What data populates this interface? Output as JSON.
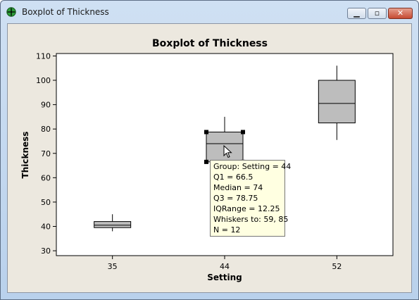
{
  "window": {
    "title": "Boxplot of Thickness",
    "app_icon": "minitab-crosshair-icon",
    "controls": {
      "minimize": "minimize-icon",
      "maximize": "maximize-icon",
      "close": "close-icon"
    }
  },
  "chart_data": {
    "type": "boxplot",
    "title": "Boxplot of Thickness",
    "xlabel": "Setting",
    "ylabel": "Thickness",
    "categories": [
      "35",
      "44",
      "52"
    ],
    "ylim": [
      28,
      111
    ],
    "yticks": [
      30,
      40,
      50,
      60,
      70,
      80,
      90,
      100,
      110
    ],
    "grid": false,
    "box_color": "#bdbdbd",
    "boxes": [
      {
        "category": "35",
        "whisker_low": 38,
        "q1": 39.5,
        "median": 40.5,
        "q3": 42,
        "whisker_high": 45
      },
      {
        "category": "44",
        "whisker_low": 59,
        "q1": 66.5,
        "median": 74,
        "q3": 78.75,
        "whisker_high": 85
      },
      {
        "category": "52",
        "whisker_low": 75.5,
        "q1": 82.5,
        "median": 90.5,
        "q3": 100,
        "whisker_high": 106
      }
    ],
    "selected_index": 1
  },
  "tooltip": {
    "lines": [
      "Group: Setting = 44",
      "Q1 = 66.5",
      "Median = 74",
      "Q3 = 78.75",
      "IQRange = 12.25",
      "Whiskers to: 59, 85",
      "N = 12"
    ]
  },
  "cursor": "arrow-cursor-icon"
}
